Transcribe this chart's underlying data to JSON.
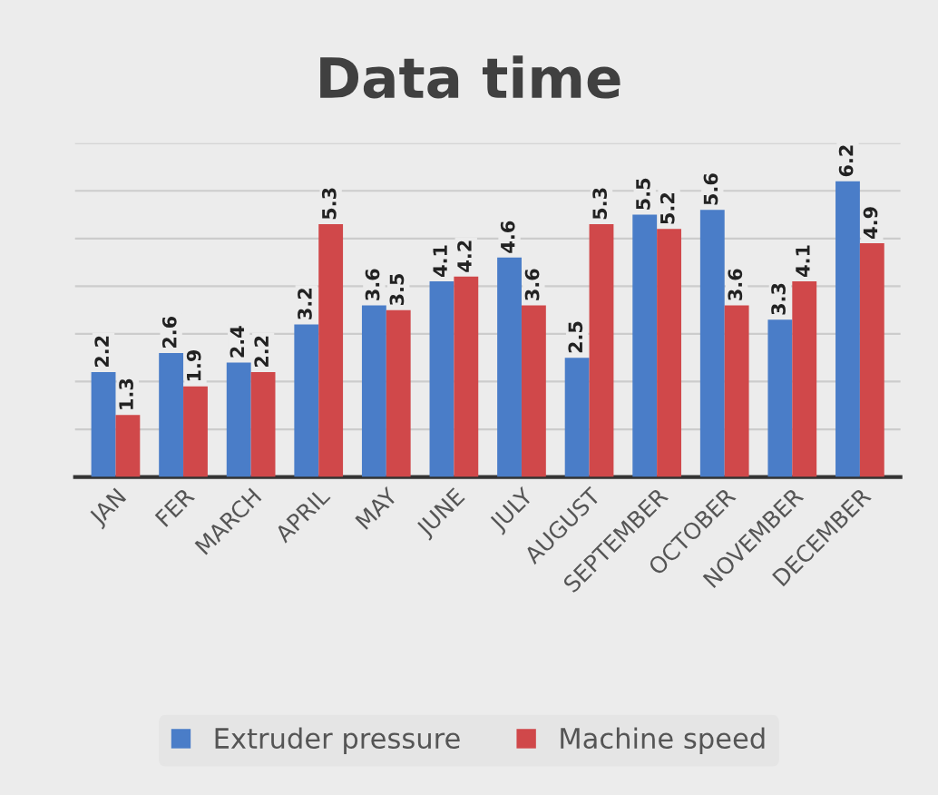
{
  "chart_data": {
    "type": "bar",
    "title": "Data time",
    "categories": [
      "JAN",
      "FER",
      "MARCH",
      "APRIL",
      "MAY",
      "JUNE",
      "JULY",
      "AUGUST",
      "SEPTEMBER",
      "OCTOBER",
      "NOVEMBER",
      "DECEMBER"
    ],
    "series": [
      {
        "name": "Extruder pressure",
        "color": "#4a7dc8",
        "values": [
          2.2,
          2.6,
          2.4,
          3.2,
          3.6,
          4.1,
          4.6,
          2.5,
          5.5,
          5.6,
          3.3,
          6.2
        ]
      },
      {
        "name": "Machine speed",
        "color": "#d0484a",
        "values": [
          1.3,
          1.9,
          2.2,
          5.3,
          3.5,
          4.2,
          3.6,
          5.3,
          5.2,
          3.6,
          4.1,
          4.9
        ]
      }
    ],
    "ylim": [
      0,
      7
    ],
    "yticks": [
      {
        "value": 0,
        "label": null
      },
      {
        "value": 1,
        "label": null
      },
      {
        "value": 2,
        "label": null
      },
      {
        "value": 3,
        "label": null
      },
      {
        "value": 4,
        "label": null
      },
      {
        "value": 5,
        "label": null
      },
      {
        "value": 6,
        "label": null
      },
      {
        "value": 7,
        "label": null
      }
    ],
    "tick_labels": "x",
    "grid": "y",
    "data_labels": true,
    "legend": "bottom"
  }
}
